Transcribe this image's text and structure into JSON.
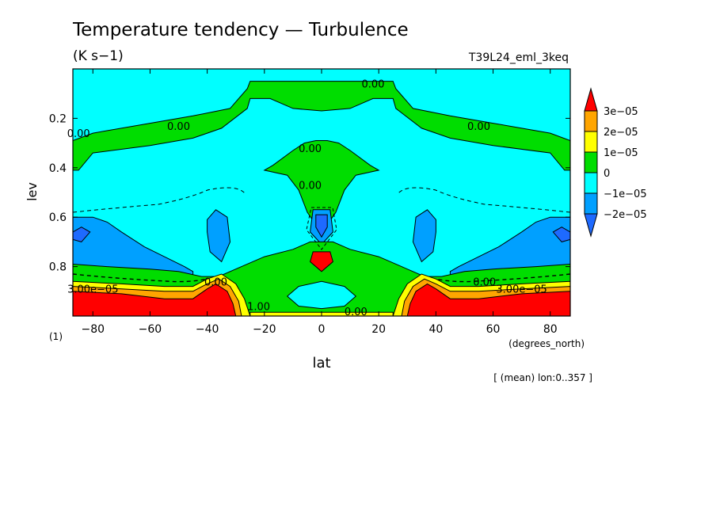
{
  "chart_data": {
    "type": "contour",
    "title": "Temperature tendency — Turbulence",
    "units": "(K s−1)",
    "run_label": "T39L24_eml_3keq",
    "xlabel": "lat",
    "xunits": "(degrees_north)",
    "ylabel": "lev",
    "yunits": "(1)",
    "footnote": "[ (mean) lon:0..357 ]",
    "xlim": [
      -87,
      87
    ],
    "ylim": [
      0.0,
      1.0
    ],
    "y_inverted": true,
    "x_ticks": [
      -80,
      -60,
      -40,
      -20,
      0,
      20,
      40,
      60,
      80
    ],
    "x_tick_labels": [
      "−80",
      "−60",
      "−40",
      "−20",
      "0",
      "20",
      "40",
      "60",
      "80"
    ],
    "y_ticks": [
      0.2,
      0.4,
      0.6,
      0.8
    ],
    "y_tick_labels": [
      "0.2",
      "0.4",
      "0.6",
      "0.8"
    ],
    "legend": {
      "levels": [
        {
          "label": "3e−05",
          "value": 3e-05,
          "color": "#ff0000"
        },
        {
          "label": "2e−05",
          "value": 2e-05,
          "color": "#ffa500"
        },
        {
          "label": "1e−05",
          "value": 1e-05,
          "color": "#ffff00"
        },
        {
          "label": "0",
          "value": 0,
          "color": "#00dd00"
        },
        {
          "label": "−1e−05",
          "value": -1e-05,
          "color": "#00ffff"
        },
        {
          "label": "−2e−05",
          "value": -2e-05,
          "color": "#00a0ff"
        }
      ],
      "below_color": "#1e6aff",
      "above_color": "#ff0000"
    },
    "fill_colors": {
      "background": "#00ffff",
      "zero_band": "#00dd00",
      "minus1": "#00a0ff",
      "minus2": "#1e6aff",
      "plus1": "#ffff00",
      "plus2": "#ffa500",
      "plus3": "#ff0000"
    },
    "regions": [
      {
        "name": "upper-zero-band",
        "class": "zero_band",
        "points": [
          [
            -87,
            0.29
          ],
          [
            -80,
            0.26
          ],
          [
            -60,
            0.22
          ],
          [
            -45,
            0.19
          ],
          [
            -32,
            0.16
          ],
          [
            -26,
            0.08
          ],
          [
            -25,
            0.05
          ],
          [
            25,
            0.05
          ],
          [
            26,
            0.08
          ],
          [
            32,
            0.16
          ],
          [
            45,
            0.19
          ],
          [
            60,
            0.22
          ],
          [
            80,
            0.26
          ],
          [
            87,
            0.29
          ],
          [
            87,
            0.41
          ],
          [
            85,
            0.41
          ],
          [
            80,
            0.34
          ],
          [
            60,
            0.31
          ],
          [
            45,
            0.28
          ],
          [
            35,
            0.24
          ],
          [
            26,
            0.16
          ],
          [
            25,
            0.12
          ],
          [
            18,
            0.12
          ],
          [
            10,
            0.16
          ],
          [
            0,
            0.17
          ],
          [
            -10,
            0.16
          ],
          [
            -18,
            0.12
          ],
          [
            -25,
            0.12
          ],
          [
            -26,
            0.16
          ],
          [
            -35,
            0.24
          ],
          [
            -45,
            0.28
          ],
          [
            -60,
            0.31
          ],
          [
            -80,
            0.34
          ],
          [
            -85,
            0.41
          ],
          [
            -87,
            0.41
          ]
        ]
      },
      {
        "name": "central-zero-blob",
        "class": "zero_band",
        "points": [
          [
            -17,
            0.39
          ],
          [
            -10,
            0.33
          ],
          [
            -6,
            0.3
          ],
          [
            -2,
            0.29
          ],
          [
            2,
            0.29
          ],
          [
            6,
            0.3
          ],
          [
            10,
            0.33
          ],
          [
            17,
            0.39
          ],
          [
            20,
            0.41
          ],
          [
            12,
            0.43
          ],
          [
            8,
            0.49
          ],
          [
            5,
            0.58
          ],
          [
            2,
            0.63
          ],
          [
            -2,
            0.63
          ],
          [
            -5,
            0.58
          ],
          [
            -8,
            0.49
          ],
          [
            -12,
            0.43
          ],
          [
            -20,
            0.41
          ]
        ]
      },
      {
        "name": "left-minus1-blob",
        "class": "minus1",
        "points": [
          [
            -87,
            0.6
          ],
          [
            -80,
            0.6
          ],
          [
            -75,
            0.62
          ],
          [
            -70,
            0.66
          ],
          [
            -62,
            0.72
          ],
          [
            -55,
            0.76
          ],
          [
            -48,
            0.8
          ],
          [
            -45,
            0.82
          ],
          [
            -45,
            0.84
          ],
          [
            -60,
            0.83
          ],
          [
            -75,
            0.82
          ],
          [
            -87,
            0.82
          ]
        ]
      },
      {
        "name": "right-minus1-blob",
        "class": "minus1",
        "points": [
          [
            87,
            0.6
          ],
          [
            80,
            0.6
          ],
          [
            75,
            0.62
          ],
          [
            70,
            0.66
          ],
          [
            62,
            0.72
          ],
          [
            55,
            0.76
          ],
          [
            48,
            0.8
          ],
          [
            45,
            0.82
          ],
          [
            45,
            0.84
          ],
          [
            60,
            0.83
          ],
          [
            75,
            0.82
          ],
          [
            87,
            0.82
          ]
        ]
      },
      {
        "name": "left-mid-minus1",
        "class": "minus1",
        "points": [
          [
            -40,
            0.61
          ],
          [
            -37,
            0.57
          ],
          [
            -33,
            0.6
          ],
          [
            -32,
            0.7
          ],
          [
            -35,
            0.78
          ],
          [
            -39,
            0.74
          ],
          [
            -40,
            0.66
          ]
        ]
      },
      {
        "name": "right-mid-minus1",
        "class": "minus1",
        "points": [
          [
            40,
            0.61
          ],
          [
            37,
            0.57
          ],
          [
            33,
            0.6
          ],
          [
            32,
            0.7
          ],
          [
            35,
            0.78
          ],
          [
            39,
            0.74
          ],
          [
            40,
            0.66
          ]
        ]
      },
      {
        "name": "left-minus2-core",
        "class": "minus2",
        "points": [
          [
            -87,
            0.66
          ],
          [
            -84,
            0.64
          ],
          [
            -81,
            0.66
          ],
          [
            -84,
            0.7
          ],
          [
            -87,
            0.69
          ]
        ]
      },
      {
        "name": "right-minus2-core",
        "class": "minus2",
        "points": [
          [
            87,
            0.66
          ],
          [
            84,
            0.64
          ],
          [
            81,
            0.66
          ],
          [
            84,
            0.7
          ],
          [
            87,
            0.69
          ]
        ]
      },
      {
        "name": "center-minus1-cell",
        "class": "minus1",
        "points": [
          [
            -3,
            0.57
          ],
          [
            3,
            0.57
          ],
          [
            4,
            0.66
          ],
          [
            0,
            0.71
          ],
          [
            -4,
            0.66
          ]
        ]
      },
      {
        "name": "center-minus2-cell",
        "class": "minus2",
        "points": [
          [
            -2,
            0.59
          ],
          [
            2,
            0.59
          ],
          [
            2,
            0.64
          ],
          [
            0,
            0.68
          ],
          [
            -2,
            0.64
          ]
        ]
      },
      {
        "name": "lower-zero-band",
        "class": "zero_band",
        "points": [
          [
            -87,
            0.79
          ],
          [
            -75,
            0.8
          ],
          [
            -60,
            0.81
          ],
          [
            -50,
            0.82
          ],
          [
            -42,
            0.84
          ],
          [
            -36,
            0.84
          ],
          [
            -28,
            0.8
          ],
          [
            -20,
            0.76
          ],
          [
            -10,
            0.73
          ],
          [
            -4,
            0.7
          ],
          [
            4,
            0.7
          ],
          [
            10,
            0.73
          ],
          [
            20,
            0.76
          ],
          [
            28,
            0.8
          ],
          [
            36,
            0.84
          ],
          [
            42,
            0.84
          ],
          [
            50,
            0.82
          ],
          [
            60,
            0.81
          ],
          [
            75,
            0.8
          ],
          [
            87,
            0.79
          ],
          [
            87,
            1.0
          ],
          [
            -87,
            1.0
          ]
        ]
      },
      {
        "name": "center-low-minus1",
        "class": "background",
        "points": [
          [
            -12,
            0.92
          ],
          [
            -8,
            0.88
          ],
          [
            0,
            0.86
          ],
          [
            8,
            0.88
          ],
          [
            12,
            0.92
          ],
          [
            8,
            0.96
          ],
          [
            0,
            0.97
          ],
          [
            -8,
            0.96
          ]
        ]
      },
      {
        "name": "center-red-cell",
        "class": "plus3",
        "points": [
          [
            -3,
            0.74
          ],
          [
            3,
            0.74
          ],
          [
            4,
            0.78
          ],
          [
            0,
            0.82
          ],
          [
            -4,
            0.78
          ]
        ]
      },
      {
        "name": "left-plus1-band",
        "class": "plus1",
        "points": [
          [
            -87,
            0.86
          ],
          [
            -70,
            0.87
          ],
          [
            -55,
            0.88
          ],
          [
            -45,
            0.88
          ],
          [
            -40,
            0.85
          ],
          [
            -35,
            0.83
          ],
          [
            -30,
            0.87
          ],
          [
            -27,
            0.93
          ],
          [
            -25,
            1.0
          ],
          [
            -87,
            1.0
          ]
        ]
      },
      {
        "name": "right-plus1-band",
        "class": "plus1",
        "points": [
          [
            87,
            0.86
          ],
          [
            70,
            0.87
          ],
          [
            55,
            0.88
          ],
          [
            45,
            0.88
          ],
          [
            40,
            0.85
          ],
          [
            35,
            0.83
          ],
          [
            30,
            0.87
          ],
          [
            27,
            0.93
          ],
          [
            25,
            1.0
          ],
          [
            87,
            1.0
          ]
        ]
      },
      {
        "name": "left-plus2-band",
        "class": "plus2",
        "points": [
          [
            -87,
            0.88
          ],
          [
            -70,
            0.89
          ],
          [
            -55,
            0.9
          ],
          [
            -45,
            0.9
          ],
          [
            -40,
            0.87
          ],
          [
            -36,
            0.85
          ],
          [
            -32,
            0.88
          ],
          [
            -29,
            0.94
          ],
          [
            -28,
            1.0
          ],
          [
            -87,
            1.0
          ]
        ]
      },
      {
        "name": "right-plus2-band",
        "class": "plus2",
        "points": [
          [
            87,
            0.88
          ],
          [
            70,
            0.89
          ],
          [
            55,
            0.9
          ],
          [
            45,
            0.9
          ],
          [
            40,
            0.87
          ],
          [
            36,
            0.85
          ],
          [
            32,
            0.88
          ],
          [
            29,
            0.94
          ],
          [
            28,
            1.0
          ],
          [
            87,
            1.0
          ]
        ]
      },
      {
        "name": "left-plus3-band",
        "class": "plus3",
        "points": [
          [
            -87,
            0.9
          ],
          [
            -70,
            0.91
          ],
          [
            -55,
            0.93
          ],
          [
            -45,
            0.93
          ],
          [
            -40,
            0.89
          ],
          [
            -37,
            0.87
          ],
          [
            -33,
            0.9
          ],
          [
            -31,
            0.95
          ],
          [
            -30,
            1.0
          ],
          [
            -87,
            1.0
          ]
        ]
      },
      {
        "name": "right-plus3-band",
        "class": "plus3",
        "points": [
          [
            87,
            0.9
          ],
          [
            70,
            0.91
          ],
          [
            55,
            0.93
          ],
          [
            45,
            0.93
          ],
          [
            40,
            0.89
          ],
          [
            37,
            0.87
          ],
          [
            33,
            0.9
          ],
          [
            31,
            0.95
          ],
          [
            30,
            1.0
          ],
          [
            87,
            1.0
          ]
        ]
      },
      {
        "name": "bottom-center-plus1",
        "class": "plus1",
        "points": [
          [
            -25,
            0.985
          ],
          [
            25,
            0.985
          ],
          [
            25,
            1.0
          ],
          [
            -25,
            1.0
          ]
        ]
      }
    ],
    "contour_labels": [
      {
        "text": "0.00",
        "lat": 18,
        "lev": 0.06
      },
      {
        "text": "0.00",
        "lat": -85,
        "lev": 0.26
      },
      {
        "text": "0.00",
        "lat": -50,
        "lev": 0.23
      },
      {
        "text": "0.00",
        "lat": 55,
        "lev": 0.23
      },
      {
        "text": "0.00",
        "lat": -4,
        "lev": 0.32
      },
      {
        "text": "0.00",
        "lat": -4,
        "lev": 0.47
      },
      {
        "text": "0.00",
        "lat": -37,
        "lev": 0.86
      },
      {
        "text": "0.00",
        "lat": 57,
        "lev": 0.86
      },
      {
        "text": "3.00e−05",
        "lat": -80,
        "lev": 0.89
      },
      {
        "text": "3.00e−05",
        "lat": 70,
        "lev": 0.89
      },
      {
        "text": "1.00",
        "lat": -22,
        "lev": 0.96
      },
      {
        "text": "0.00",
        "lat": 12,
        "lev": 0.98
      }
    ]
  }
}
